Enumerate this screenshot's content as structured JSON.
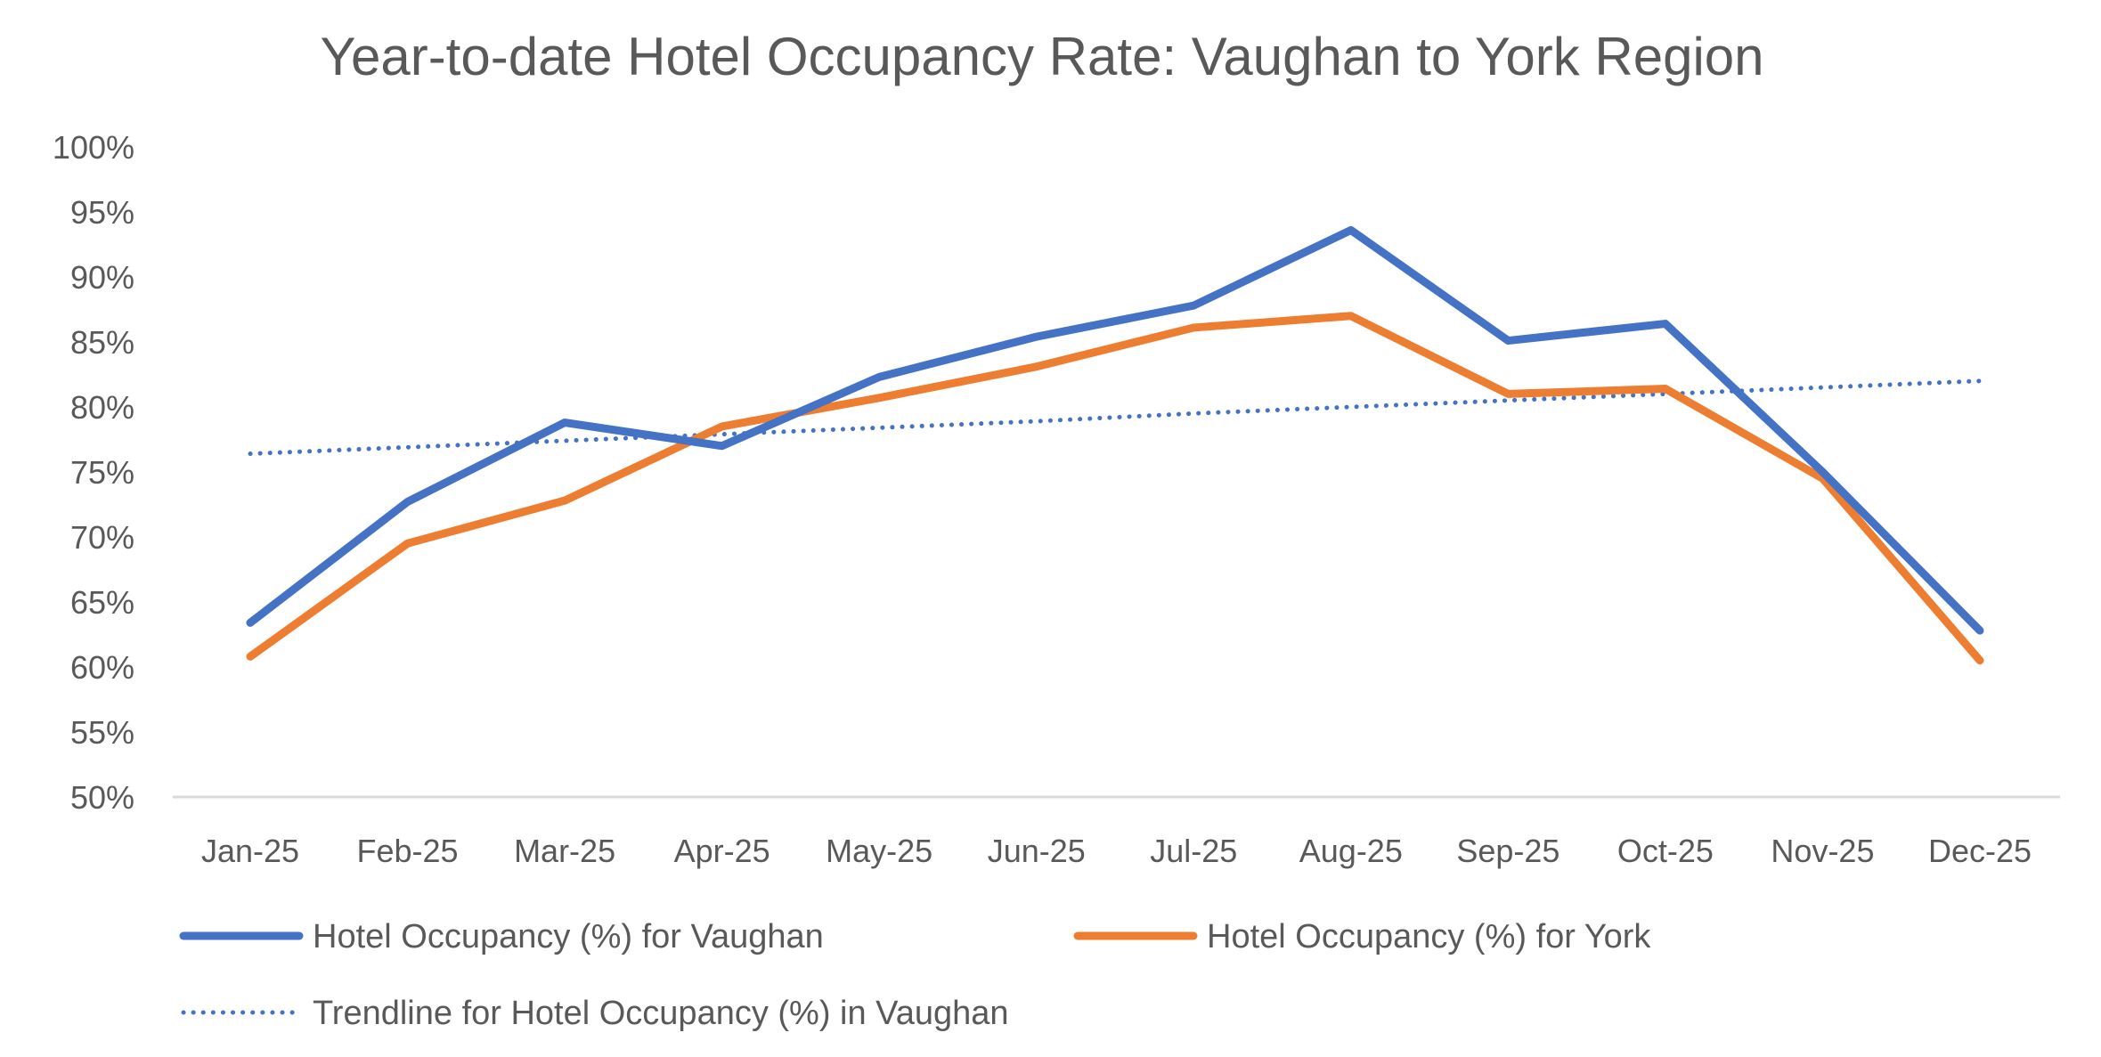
{
  "chart_data": {
    "type": "line",
    "title": "Year-to-date Hotel Occupancy Rate: Vaughan to York Region",
    "xlabel": "",
    "ylabel": "",
    "categories": [
      "Jan-25",
      "Feb-25",
      "Mar-25",
      "Apr-25",
      "May-25",
      "Jun-25",
      "Jul-25",
      "Aug-25",
      "Sep-25",
      "Oct-25",
      "Nov-25",
      "Dec-25"
    ],
    "y_ticks": [
      "50%",
      "55%",
      "60%",
      "65%",
      "70%",
      "75%",
      "80%",
      "85%",
      "90%",
      "95%",
      "100%"
    ],
    "ylim": [
      50,
      100
    ],
    "grid": false,
    "legend_placement": "bottom",
    "series": [
      {
        "name": "Hotel Occupancy (%) for Vaughan",
        "color": "#4472C4",
        "style": "solid",
        "values": [
          63.4,
          72.7,
          78.8,
          77.0,
          82.3,
          85.4,
          87.8,
          93.6,
          85.1,
          86.4,
          75.0,
          62.8
        ]
      },
      {
        "name": "Hotel Occupancy (%) for York",
        "color": "#ED7D31",
        "style": "solid",
        "values": [
          60.8,
          69.5,
          72.8,
          78.5,
          80.7,
          83.1,
          86.1,
          87.0,
          81.0,
          81.4,
          74.5,
          60.5
        ]
      },
      {
        "name": "Trendline for Hotel Occupancy (%) in Vaughan",
        "color": "#4472C4",
        "style": "dotted",
        "values": [
          76.4,
          76.9,
          77.4,
          77.9,
          78.4,
          78.9,
          79.5,
          80.0,
          80.5,
          81.0,
          81.5,
          82.0
        ]
      }
    ]
  }
}
